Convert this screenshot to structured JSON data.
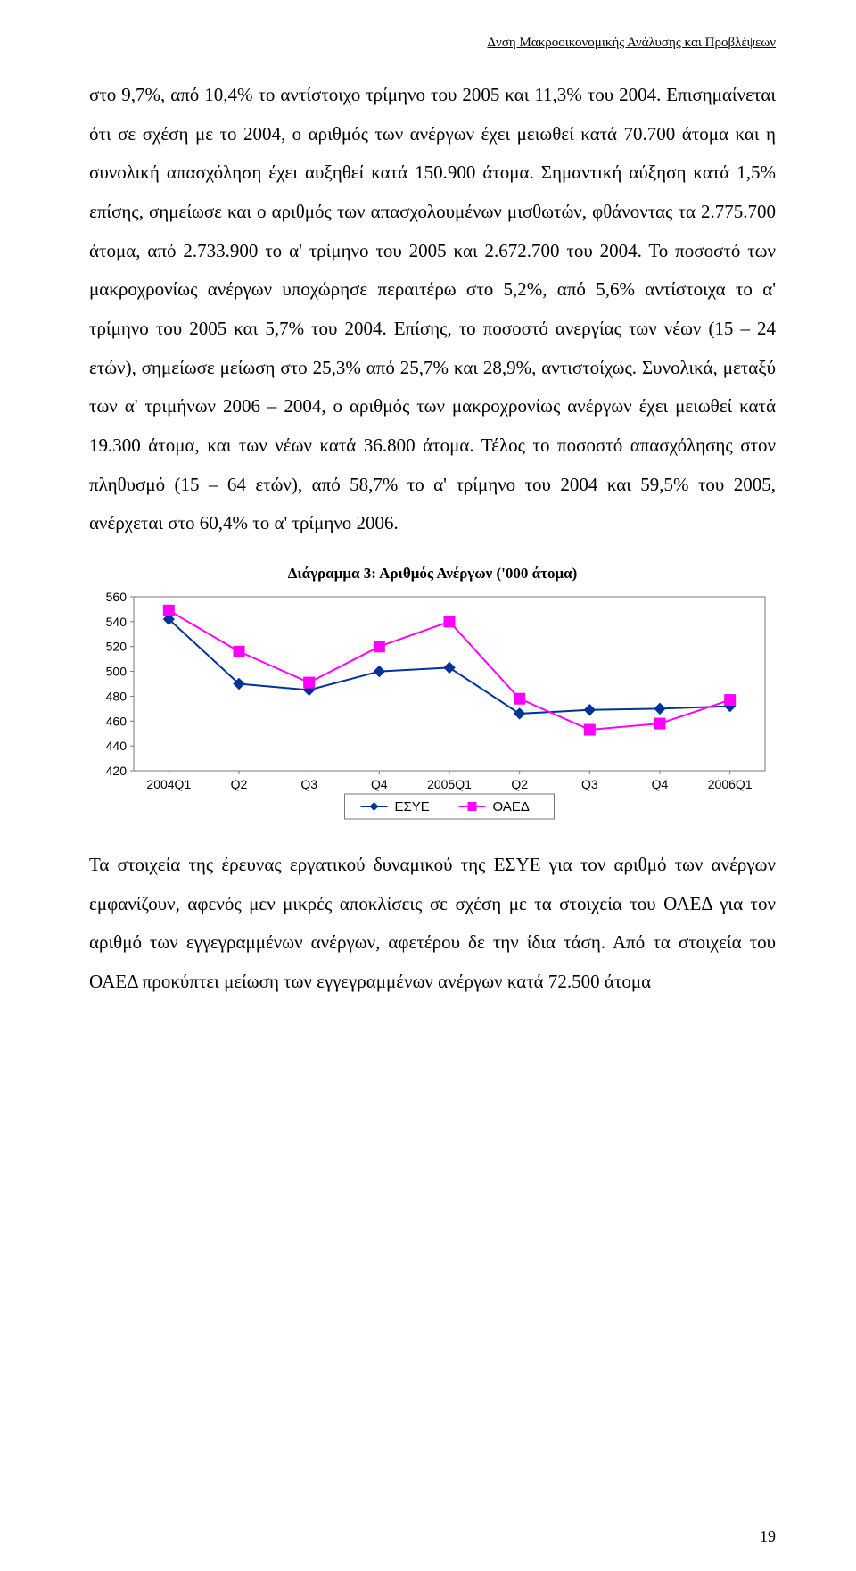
{
  "header": {
    "right_text": "Δνση Μακροοικονομικής Ανάλυσης και Προβλέψεων"
  },
  "body": {
    "para1": "στο 9,7%, από 10,4% το αντίστοιχο τρίμηνο του 2005 και 11,3% του 2004. Επισημαίνεται ότι σε σχέση με το 2004, ο αριθμός των ανέργων έχει μειωθεί κατά 70.700 άτομα και η συνολική απασχόληση έχει αυξηθεί κατά 150.900 άτομα. Σημαντική αύξηση κατά 1,5% επίσης, σημείωσε και ο αριθμός των απασχολουμένων μισθωτών, φθάνοντας τα 2.775.700 άτομα, από 2.733.900 το α' τρίμηνο του 2005 και 2.672.700 του 2004. Το ποσοστό των μακροχρονίως ανέργων υποχώρησε περαιτέρω στο 5,2%, από 5,6% αντίστοιχα το α' τρίμηνο του 2005 και 5,7% του 2004. Επίσης, το ποσοστό ανεργίας των νέων (15 – 24 ετών), σημείωσε μείωση στο 25,3% από 25,7% και 28,9%, αντιστοίχως. Συνολικά, μεταξύ των α' τριμήνων 2006 – 2004, ο αριθμός των μακροχρονίως ανέργων έχει μειωθεί κατά 19.300 άτομα, και των νέων κατά 36.800 άτομα. Τέλος το ποσοστό απασχόλησης στον πληθυσμό (15 – 64 ετών), από 58,7% το α' τρίμηνο του 2004 και 59,5% του 2005, ανέρχεται στο 60,4% το α' τρίμηνο 2006.",
    "para2": "Τα στοιχεία της έρευνας εργατικού δυναμικού της ΕΣΥΕ για τον αριθμό των ανέργων εμφανίζουν, αφενός μεν μικρές αποκλίσεις σε σχέση με τα στοιχεία του ΟΑΕΔ για τον αριθμό των εγγεγραμμένων ανέργων, αφετέρου δε την ίδια τάση. Από τα στοιχεία του ΟΑΕΔ προκύπτει μείωση των εγγεγραμμένων ανέργων κατά 72.500 άτομα"
  },
  "chart": {
    "title": "Διάγραμμα 3: Αριθμός Ανέργων ('000 άτομα)",
    "type": "line",
    "categories": [
      "2004Q1",
      "Q2",
      "Q3",
      "Q4",
      "2005Q1",
      "Q2",
      "Q3",
      "Q4",
      "2006Q1"
    ],
    "series": [
      {
        "name": "ΕΣΥΕ",
        "values": [
          542,
          490,
          485,
          500,
          503,
          466,
          469,
          470,
          472
        ],
        "color": "#003399",
        "marker": "diamond"
      },
      {
        "name": "ΟΑΕΔ",
        "values": [
          549,
          516,
          491,
          520,
          540,
          478,
          453,
          458,
          477
        ],
        "color": "#ff00ff",
        "marker": "square"
      }
    ],
    "ylim": [
      420,
      560
    ],
    "ytick_step": 20,
    "yticks": [
      420,
      440,
      460,
      480,
      500,
      520,
      540,
      560
    ],
    "background_color": "#ffffff",
    "grid_color": "#7a7a7a",
    "axis_fontsize": 14,
    "title_fontsize": 17,
    "legend": {
      "items": [
        "ΕΣΥΕ",
        "ΟΑΕΔ"
      ]
    }
  },
  "footer": {
    "page_number": "19"
  }
}
